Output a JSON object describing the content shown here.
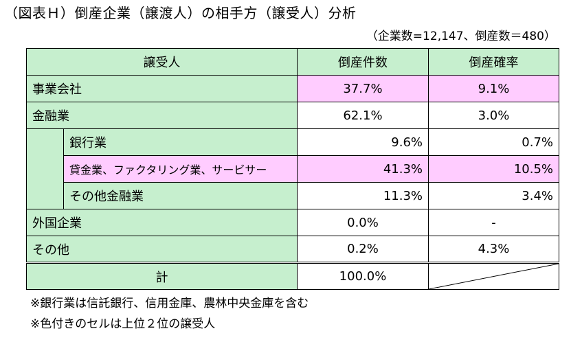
{
  "title": "（図表Ｈ）倒産企業（譲渡人）の相手方（譲受人）分析",
  "subtitle": "（企業数=12,147、倒産数＝480）",
  "headers": {
    "col1": "譲受人",
    "col2": "倒産件数",
    "col3": "倒産確率"
  },
  "rows": {
    "jigyo": {
      "label": "事業会社",
      "count": "37.7%",
      "rate": "9.1%"
    },
    "kinyu": {
      "label": "金融業",
      "count": "62.1%",
      "rate": "3.0%"
    },
    "ginko": {
      "label": "銀行業",
      "count": "9.6%",
      "rate": "0.7%"
    },
    "kashikin": {
      "label": "貸金業、ファクタリング業、サービサー",
      "count": "41.3%",
      "rate": "10.5%"
    },
    "sonota_kinyu": {
      "label": "その他金融業",
      "count": "11.3%",
      "rate": "3.4%"
    },
    "gaikoku": {
      "label": "外国企業",
      "count": "0.0%",
      "rate": "-"
    },
    "sonota": {
      "label": "その他",
      "count": "0.2%",
      "rate": "4.3%"
    },
    "total": {
      "label": "計",
      "count": "100.0%"
    }
  },
  "colors": {
    "green": "#c6efce",
    "pink": "#ffccff"
  },
  "notes": [
    "※銀行業は信託銀行、信用金庫、農林中央金庫を含む",
    "※色付きのセルは上位２位の譲受人"
  ]
}
